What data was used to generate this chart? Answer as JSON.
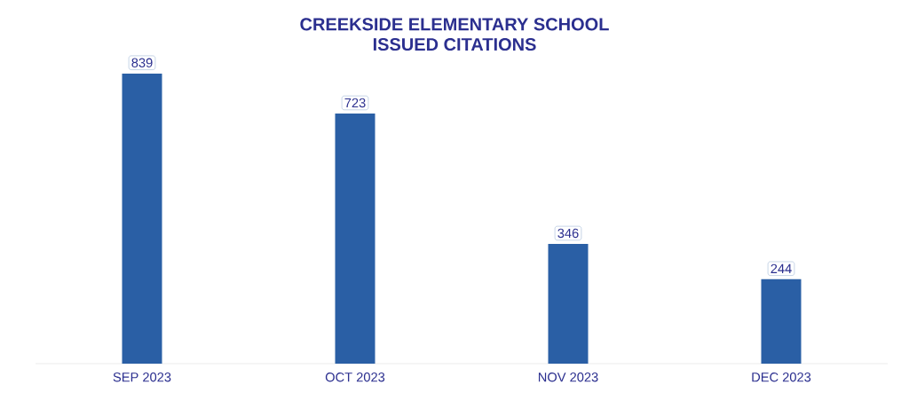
{
  "chart_data": {
    "type": "bar",
    "title": "CREEKSIDE ELEMENTARY SCHOOL\nISSUED CITATIONS",
    "categories": [
      "SEP 2023",
      "OCT 2023",
      "NOV 2023",
      "DEC 2023"
    ],
    "values": [
      839,
      723,
      346,
      244
    ],
    "color": "#2a5fa5",
    "data_labels": true
  }
}
